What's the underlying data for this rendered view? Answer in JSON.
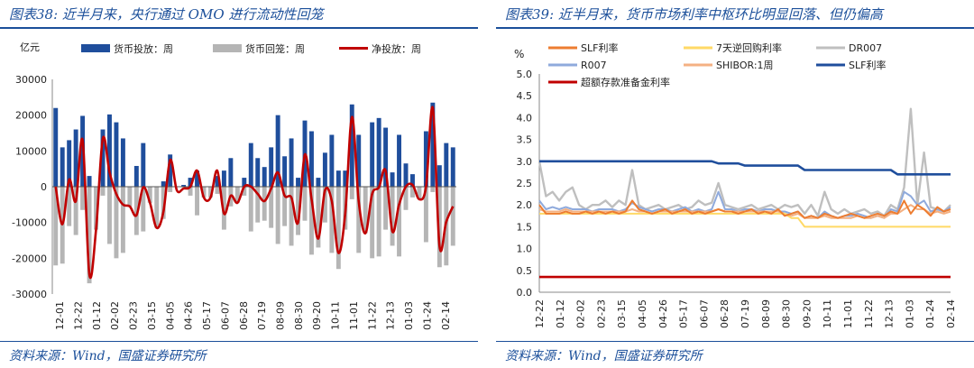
{
  "left": {
    "title": "图表38:  近半月来，央行通过 OMO 进行流动性回笼",
    "source": "资料来源：Wind，国盛证券研究所"
  },
  "right": {
    "title": "图表39:  近半月来，货币市场利率中枢环比明显回落、但仍偏高",
    "source": "资料来源：Wind，国盛证券研究所"
  },
  "chart_data": [
    {
      "type": "bar",
      "ylabel": "亿元",
      "ylim": [
        -30000,
        30000
      ],
      "yticks": [
        -30000,
        -20000,
        -10000,
        0,
        10000,
        20000,
        30000
      ],
      "xtick_labels": [
        "12-01",
        "12-22",
        "01-12",
        "02-02",
        "02-23",
        "03-15",
        "04-05",
        "04-26",
        "05-17",
        "06-07",
        "06-28",
        "07-19",
        "08-09",
        "08-30",
        "09-20",
        "10-11",
        "11-01",
        "11-22",
        "12-13",
        "01-03",
        "01-24",
        "02-14"
      ],
      "legend_position": "top",
      "series": [
        {
          "name": "货币投放：周",
          "kind": "bar",
          "color": "#1f4e9c",
          "values": [
            22000,
            11000,
            13000,
            16000,
            19800,
            3000,
            0,
            16000,
            20200,
            18000,
            13500,
            0,
            5800,
            12200,
            0,
            0,
            1500,
            9000,
            0,
            500,
            2500,
            4500,
            0,
            0,
            3000,
            4500,
            8000,
            0,
            2500,
            12200,
            8000,
            5500,
            11000,
            20000,
            8500,
            13500,
            2500,
            18500,
            15500,
            2500,
            9500,
            14500,
            4500,
            4500,
            23000,
            14500,
            0,
            18000,
            19200,
            16500,
            4000,
            14500,
            6500,
            3500,
            0,
            15500,
            23500,
            6000,
            12200,
            11000
          ]
        },
        {
          "name": "货币回笼：周",
          "kind": "bar",
          "color": "#b5b5b5",
          "values": [
            -22000,
            -21500,
            -11000,
            -13500,
            -6500,
            -27000,
            -12000,
            -2500,
            -16000,
            -20000,
            -18500,
            -5500,
            -13500,
            -12500,
            -4500,
            -11500,
            -9000,
            -1500,
            0,
            0,
            -2500,
            -8000,
            -3000,
            -3000,
            -2000,
            -12000,
            -5500,
            -4500,
            -2500,
            -12500,
            -10000,
            -9500,
            -11500,
            -16000,
            -11000,
            -16500,
            -13500,
            -9500,
            -19000,
            -17000,
            -10000,
            -18500,
            -23000,
            -12000,
            -3500,
            -18500,
            -13000,
            -20000,
            -19500,
            -12000,
            -16500,
            -19500,
            -6500,
            -3000,
            -3500,
            -15500,
            -1500,
            -22500,
            -22000,
            -16500
          ]
        },
        {
          "name": "净投放：周",
          "kind": "line",
          "color": "#c00000",
          "values": [
            0,
            -10500,
            2000,
            -4000,
            13000,
            -24500,
            -12000,
            13500,
            4000,
            -2000,
            -5000,
            -5500,
            -8000,
            -200,
            -4500,
            -11500,
            -7000,
            7500,
            -1000,
            -500,
            0,
            4500,
            -3000,
            -3000,
            4500,
            -7500,
            -2500,
            -4500,
            0,
            0,
            -2000,
            -4000,
            -500,
            4000,
            -2500,
            -3000,
            -10000,
            9000,
            -3500,
            -14500,
            -1000,
            -4000,
            -18500,
            -7500,
            19500,
            -4000,
            -13000,
            -2000,
            -200,
            4500,
            -12500,
            -5000,
            0,
            500,
            -3500,
            0,
            22000,
            -16500,
            -9800,
            -5500
          ]
        }
      ]
    },
    {
      "type": "line",
      "ylabel": "%",
      "ylim": [
        0,
        5
      ],
      "yticks": [
        0.0,
        0.5,
        1.0,
        1.5,
        2.0,
        2.5,
        3.0,
        3.5,
        4.0,
        4.5,
        5.0
      ],
      "xtick_labels": [
        "12-22",
        "01-12",
        "02-02",
        "02-23",
        "03-15",
        "04-05",
        "04-26",
        "05-17",
        "06-07",
        "06-28",
        "07-19",
        "08-09",
        "08-30",
        "09-20",
        "10-11",
        "11-01",
        "11-22",
        "12-13",
        "01-03",
        "01-24",
        "02-14"
      ],
      "legend_position": "top",
      "series": [
        {
          "name": "SLF利率",
          "color": "#ed7d31",
          "values": [
            2.0,
            1.8,
            1.8,
            1.8,
            1.85,
            1.8,
            1.8,
            1.85,
            1.8,
            1.85,
            1.8,
            1.85,
            1.8,
            1.85,
            2.1,
            1.9,
            1.85,
            1.8,
            1.85,
            1.9,
            1.8,
            1.85,
            1.9,
            1.8,
            1.85,
            1.8,
            1.85,
            1.9,
            1.85,
            1.85,
            1.8,
            1.85,
            1.9,
            1.8,
            1.85,
            1.8,
            1.9,
            1.75,
            1.8,
            1.85,
            1.7,
            1.75,
            1.7,
            1.8,
            1.75,
            1.7,
            1.75,
            1.8,
            1.75,
            1.7,
            1.75,
            1.8,
            1.75,
            1.85,
            1.8,
            2.1,
            1.8,
            2.0,
            1.9,
            1.75,
            1.95,
            1.85,
            1.9
          ]
        },
        {
          "name": "7天逆回购利率",
          "color": "#ffd966",
          "values": [
            1.8,
            1.8,
            1.8,
            1.8,
            1.8,
            1.8,
            1.8,
            1.8,
            1.8,
            1.8,
            1.8,
            1.8,
            1.8,
            1.8,
            1.8,
            1.8,
            1.8,
            1.8,
            1.8,
            1.8,
            1.8,
            1.8,
            1.8,
            1.8,
            1.8,
            1.8,
            1.8,
            1.8,
            1.8,
            1.8,
            1.8,
            1.8,
            1.8,
            1.8,
            1.8,
            1.8,
            1.8,
            1.8,
            1.7,
            1.7,
            1.5,
            1.5,
            1.5,
            1.5,
            1.5,
            1.5,
            1.5,
            1.5,
            1.5,
            1.5,
            1.5,
            1.5,
            1.5,
            1.5,
            1.5,
            1.5,
            1.5,
            1.5,
            1.5,
            1.5,
            1.5,
            1.5,
            1.5
          ]
        },
        {
          "name": "DR007",
          "color": "#bfbfbf",
          "values": [
            3.0,
            2.2,
            2.3,
            2.1,
            2.3,
            2.4,
            2.0,
            1.9,
            2.0,
            2.0,
            2.1,
            1.95,
            2.1,
            2.0,
            2.8,
            2.0,
            1.9,
            1.95,
            2.0,
            1.9,
            1.95,
            2.0,
            1.9,
            1.95,
            2.1,
            2.0,
            2.05,
            2.5,
            2.0,
            1.95,
            1.9,
            1.95,
            2.0,
            1.9,
            1.95,
            2.0,
            1.9,
            2.0,
            1.95,
            2.0,
            1.8,
            2.0,
            1.75,
            2.3,
            1.9,
            1.8,
            1.9,
            1.8,
            1.85,
            1.9,
            1.8,
            1.85,
            1.75,
            2.0,
            1.9,
            2.4,
            4.2,
            2.0,
            3.2,
            1.95,
            1.9,
            1.85,
            2.0
          ]
        },
        {
          "name": "R007",
          "color": "#8faadc",
          "values": [
            2.1,
            1.9,
            1.95,
            1.9,
            1.95,
            1.9,
            1.9,
            1.9,
            1.85,
            1.9,
            1.9,
            1.9,
            1.85,
            1.9,
            2.05,
            1.95,
            1.9,
            1.85,
            1.9,
            1.9,
            1.85,
            1.9,
            1.95,
            1.85,
            1.9,
            1.85,
            1.9,
            2.3,
            1.9,
            1.9,
            1.85,
            1.9,
            1.9,
            1.85,
            1.9,
            1.9,
            1.85,
            1.85,
            1.8,
            1.85,
            1.7,
            1.75,
            1.7,
            1.85,
            1.75,
            1.7,
            1.75,
            1.75,
            1.8,
            1.75,
            1.7,
            1.75,
            1.7,
            1.9,
            1.85,
            2.3,
            2.2,
            2.0,
            2.1,
            1.85,
            1.9,
            1.85,
            1.95
          ]
        },
        {
          "name": "SHIBOR:1周",
          "color": "#f4b183",
          "values": [
            1.9,
            1.85,
            1.85,
            1.85,
            1.9,
            1.85,
            1.85,
            1.85,
            1.85,
            1.85,
            1.85,
            1.85,
            1.85,
            1.85,
            1.9,
            1.85,
            1.85,
            1.8,
            1.85,
            1.85,
            1.85,
            1.85,
            1.85,
            1.85,
            1.85,
            1.85,
            1.85,
            1.9,
            1.85,
            1.85,
            1.85,
            1.85,
            1.85,
            1.85,
            1.85,
            1.85,
            1.85,
            1.8,
            1.75,
            1.8,
            1.7,
            1.7,
            1.7,
            1.75,
            1.7,
            1.7,
            1.7,
            1.7,
            1.75,
            1.7,
            1.7,
            1.75,
            1.7,
            1.8,
            1.8,
            1.9,
            2.0,
            1.9,
            1.9,
            1.8,
            1.85,
            1.8,
            1.85
          ]
        },
        {
          "name": "SLF利率",
          "color": "#1f4e9c",
          "values": [
            3.0,
            3.0,
            3.0,
            3.0,
            3.0,
            3.0,
            3.0,
            3.0,
            3.0,
            3.0,
            3.0,
            3.0,
            3.0,
            3.0,
            3.0,
            3.0,
            3.0,
            3.0,
            3.0,
            3.0,
            3.0,
            3.0,
            3.0,
            3.0,
            3.0,
            3.0,
            3.0,
            2.95,
            2.95,
            2.95,
            2.95,
            2.9,
            2.9,
            2.9,
            2.9,
            2.9,
            2.9,
            2.9,
            2.9,
            2.9,
            2.8,
            2.8,
            2.8,
            2.8,
            2.8,
            2.8,
            2.8,
            2.8,
            2.8,
            2.8,
            2.8,
            2.8,
            2.8,
            2.8,
            2.7,
            2.7,
            2.7,
            2.7,
            2.7,
            2.7,
            2.7,
            2.7,
            2.7
          ]
        },
        {
          "name": "超额存款准备金利率",
          "color": "#c00000",
          "values": [
            0.35,
            0.35,
            0.35,
            0.35,
            0.35,
            0.35,
            0.35,
            0.35,
            0.35,
            0.35,
            0.35,
            0.35,
            0.35,
            0.35,
            0.35,
            0.35,
            0.35,
            0.35,
            0.35,
            0.35,
            0.35,
            0.35,
            0.35,
            0.35,
            0.35,
            0.35,
            0.35,
            0.35,
            0.35,
            0.35,
            0.35,
            0.35,
            0.35,
            0.35,
            0.35,
            0.35,
            0.35,
            0.35,
            0.35,
            0.35,
            0.35,
            0.35,
            0.35,
            0.35,
            0.35,
            0.35,
            0.35,
            0.35,
            0.35,
            0.35,
            0.35,
            0.35,
            0.35,
            0.35,
            0.35,
            0.35,
            0.35,
            0.35,
            0.35,
            0.35,
            0.35,
            0.35,
            0.35
          ]
        }
      ]
    }
  ]
}
